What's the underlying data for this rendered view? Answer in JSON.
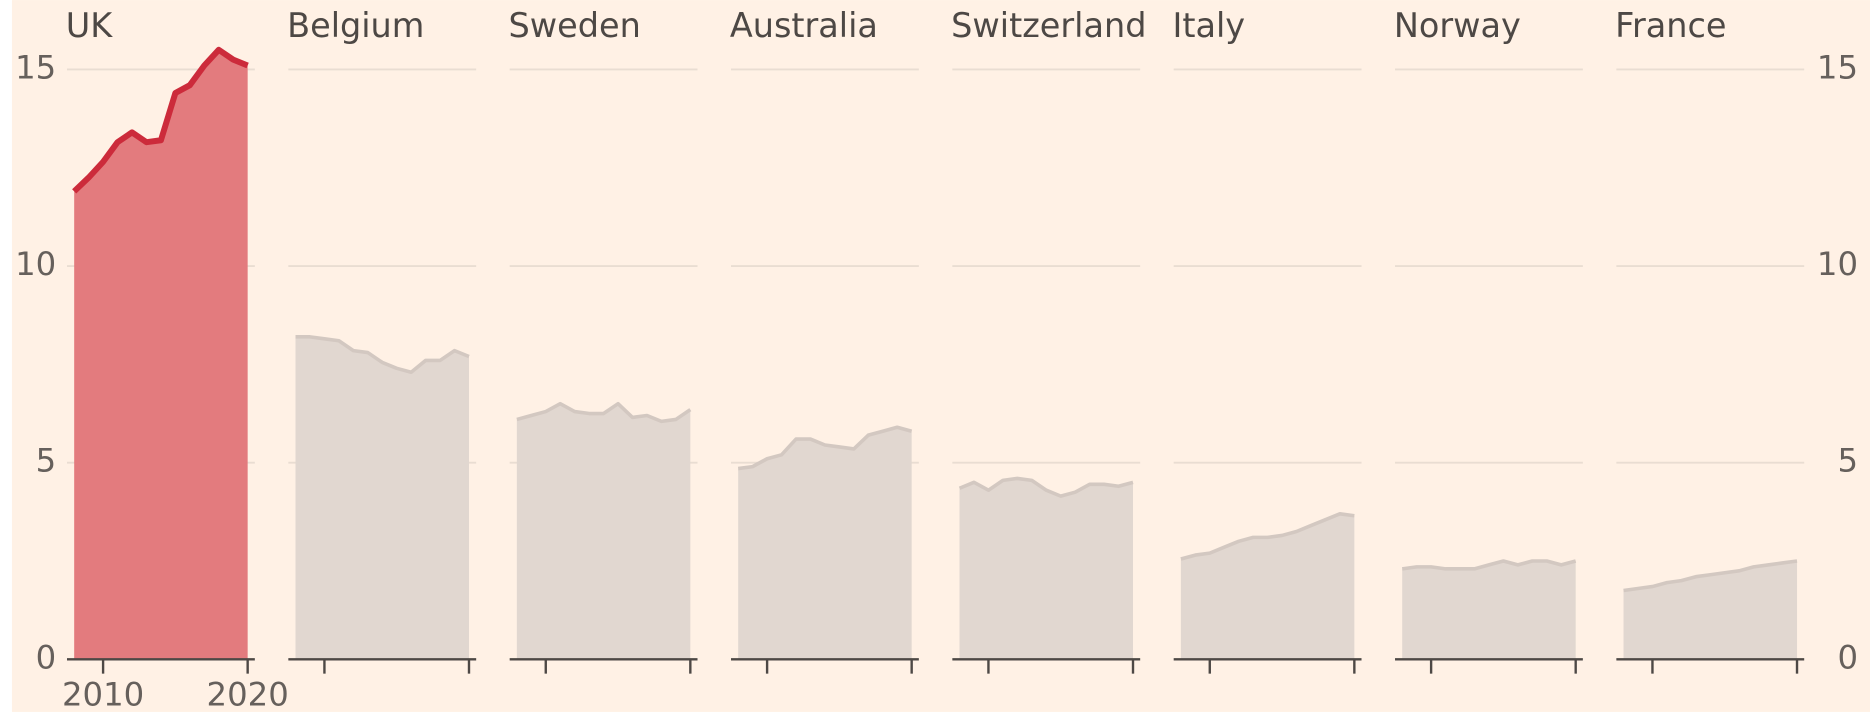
{
  "chart_data": {
    "type": "area",
    "x": [
      2008,
      2009,
      2010,
      2011,
      2012,
      2013,
      2014,
      2015,
      2016,
      2017,
      2018,
      2019,
      2020
    ],
    "xlim": [
      2008,
      2020
    ],
    "xticks": [
      2010,
      2020
    ],
    "ylim": [
      0,
      15
    ],
    "yticks": [
      0,
      5,
      10,
      15
    ],
    "grid": true,
    "series": [
      {
        "name": "UK",
        "color": "#e37b7e",
        "line_color": "#cc2b3b",
        "values": [
          11.9,
          12.25,
          12.65,
          13.15,
          13.4,
          13.15,
          13.2,
          14.4,
          14.6,
          15.1,
          15.5,
          15.25,
          15.1
        ]
      },
      {
        "name": "Belgium",
        "color": "#e1d7d0",
        "line_color": "#d3c8c1",
        "values": [
          8.2,
          8.2,
          8.15,
          8.1,
          7.85,
          7.8,
          7.55,
          7.4,
          7.3,
          7.6,
          7.6,
          7.85,
          7.7
        ]
      },
      {
        "name": "Sweden",
        "color": "#e1d7d0",
        "line_color": "#d3c8c1",
        "values": [
          6.1,
          6.2,
          6.3,
          6.5,
          6.3,
          6.25,
          6.25,
          6.5,
          6.15,
          6.2,
          6.05,
          6.1,
          6.35
        ]
      },
      {
        "name": "Australia",
        "color": "#e1d7d0",
        "line_color": "#d3c8c1",
        "values": [
          4.85,
          4.9,
          5.1,
          5.2,
          5.6,
          5.6,
          5.45,
          5.4,
          5.35,
          5.7,
          5.8,
          5.9,
          5.8
        ]
      },
      {
        "name": "Switzerland",
        "color": "#e1d7d0",
        "line_color": "#d3c8c1",
        "values": [
          4.35,
          4.5,
          4.3,
          4.55,
          4.6,
          4.55,
          4.3,
          4.15,
          4.25,
          4.45,
          4.45,
          4.4,
          4.5
        ]
      },
      {
        "name": "Italy",
        "color": "#e1d7d0",
        "line_color": "#d3c8c1",
        "values": [
          2.55,
          2.65,
          2.7,
          2.85,
          3.0,
          3.1,
          3.1,
          3.15,
          3.25,
          3.4,
          3.55,
          3.7,
          3.65
        ]
      },
      {
        "name": "Norway",
        "color": "#e1d7d0",
        "line_color": "#d3c8c1",
        "values": [
          2.3,
          2.35,
          2.35,
          2.3,
          2.3,
          2.3,
          2.4,
          2.5,
          2.4,
          2.5,
          2.5,
          2.4,
          2.5
        ]
      },
      {
        "name": "France",
        "color": "#e1d7d0",
        "line_color": "#d3c8c1",
        "values": [
          1.75,
          1.8,
          1.85,
          1.95,
          2.0,
          2.1,
          2.15,
          2.2,
          2.25,
          2.35,
          2.4,
          2.45,
          2.5
        ]
      }
    ]
  }
}
